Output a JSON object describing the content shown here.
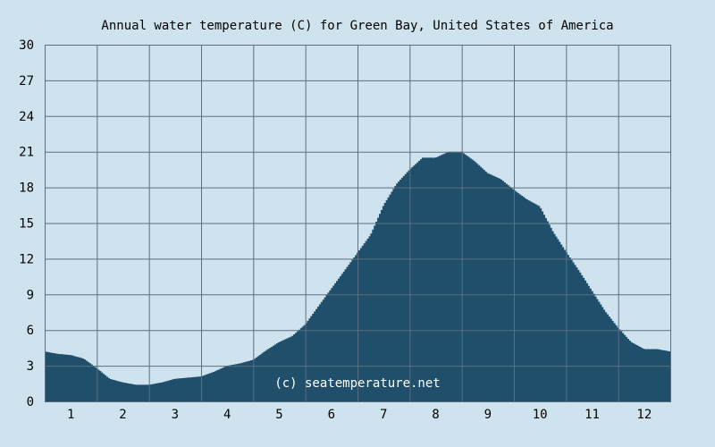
{
  "chart_data": {
    "type": "area",
    "title": "Annual water temperature (C) for Green Bay, United States of America",
    "xlabel": "",
    "ylabel": "",
    "ylim": [
      0,
      30
    ],
    "y_ticks": [
      0,
      3,
      6,
      9,
      12,
      15,
      18,
      21,
      24,
      27,
      30
    ],
    "x_tick_labels": [
      "1",
      "2",
      "3",
      "4",
      "5",
      "6",
      "7",
      "8",
      "9",
      "10",
      "11",
      "12"
    ],
    "xlim": [
      0.5,
      12.5
    ],
    "grid": true,
    "watermark": "(c) seatemperature.net",
    "colors": {
      "background": "#cfe3ee",
      "fill": "#1f4f6b",
      "grid": "#5a6f80"
    },
    "series": [
      {
        "x": [
          0.5,
          0.75,
          1.0,
          1.25,
          1.5,
          1.75,
          2.0,
          2.25,
          2.5,
          2.75,
          3.0,
          3.25,
          3.5,
          3.75,
          4.0,
          4.25,
          4.5,
          4.75,
          5.0,
          5.25,
          5.5,
          5.75,
          6.0,
          6.25,
          6.5,
          6.75,
          7.0,
          7.25,
          7.5,
          7.75,
          8.0,
          8.25,
          8.5,
          8.75,
          9.0,
          9.25,
          9.5,
          9.75,
          10.0,
          10.25,
          10.5,
          10.75,
          11.0,
          11.25,
          11.5,
          11.75,
          12.0,
          12.25,
          12.5
        ],
        "values": [
          4.2,
          4.0,
          3.9,
          3.6,
          2.8,
          1.9,
          1.6,
          1.4,
          1.4,
          1.6,
          1.9,
          2.0,
          2.1,
          2.5,
          3.0,
          3.2,
          3.5,
          4.3,
          5.0,
          5.5,
          6.5,
          8.0,
          9.5,
          11.0,
          12.5,
          14.0,
          16.5,
          18.3,
          19.5,
          20.5,
          20.5,
          21.0,
          21.0,
          20.2,
          19.2,
          18.7,
          17.8,
          17.0,
          16.4,
          14.3,
          12.6,
          11.0,
          9.3,
          7.6,
          6.2,
          5.0,
          4.4,
          4.4,
          4.2
        ]
      }
    ]
  }
}
